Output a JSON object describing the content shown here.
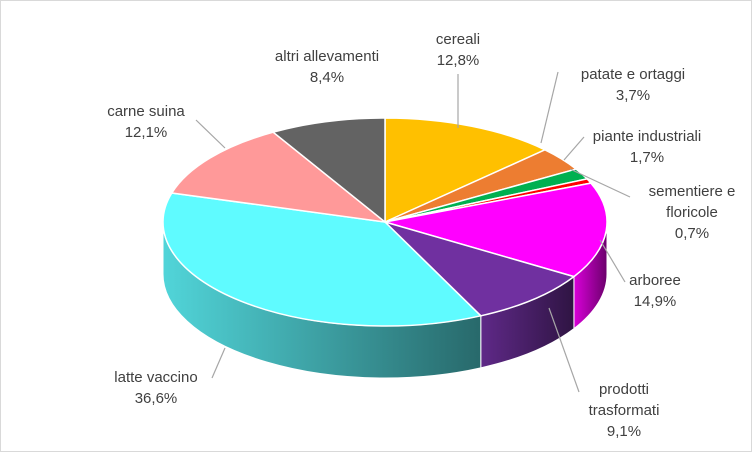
{
  "chart_data": {
    "type": "pie",
    "title": "",
    "style": "3d-exploded-none",
    "legend": "none",
    "slices": [
      {
        "label": "cereali",
        "value": 12.8,
        "value_text": "12,8%",
        "color": "#ffc000"
      },
      {
        "label": "patate e ortaggi",
        "value": 3.7,
        "value_text": "3,7%",
        "color": "#ed7d31"
      },
      {
        "label": "piante industriali",
        "value": 1.7,
        "value_text": "1,7%",
        "color": "#00b050"
      },
      {
        "label": "sementiere e floricole",
        "label_lines": [
          "sementiere e",
          "floricole"
        ],
        "value": 0.7,
        "value_text": "0,7%",
        "color": "#ff0000"
      },
      {
        "label": "arboree",
        "value": 14.9,
        "value_text": "14,9%",
        "color": "#ff00ff"
      },
      {
        "label": "prodotti trasformati",
        "label_lines": [
          "prodotti",
          "trasformati"
        ],
        "value": 9.1,
        "value_text": "9,1%",
        "color": "#7030a0"
      },
      {
        "label": "latte vaccino",
        "value": 36.6,
        "value_text": "36,6%",
        "color": "#5ffbff"
      },
      {
        "label": "carne suina",
        "value": 12.1,
        "value_text": "12,1%",
        "color": "#ff9999"
      },
      {
        "label": "altri allevamenti",
        "value": 8.4,
        "value_text": "8,4%",
        "color": "#636363"
      }
    ]
  }
}
